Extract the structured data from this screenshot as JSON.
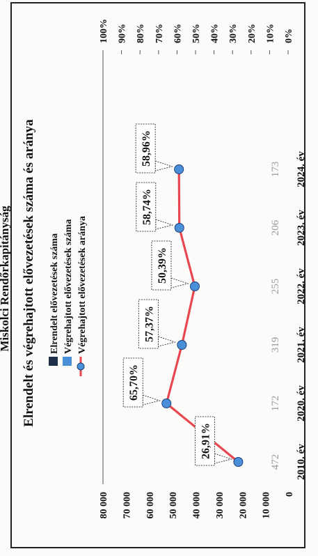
{
  "header_fragment": "Miskolci Rendőrkapitányság",
  "chart_data": {
    "type": "line",
    "title": "Elrendelt és végrehajtott elővezetések száma és aránya",
    "categories": [
      "2010. év",
      "2020. év",
      "2021. év",
      "2022. év",
      "2023. év",
      "2024. év"
    ],
    "legend": [
      {
        "name": "Elrendelt elővezetések száma",
        "color": "#1f2f4a",
        "marker": "square"
      },
      {
        "name": "Végrehajtott elővezetések száma",
        "color": "#4a90d9",
        "marker": "square"
      },
      {
        "name": "Végrehajtott elővezetések aránya",
        "color": "#e8474f",
        "marker": "line-dot"
      }
    ],
    "left_axis": {
      "ylim": [
        0,
        80000
      ],
      "ticks": [
        "0",
        "10 000",
        "20 000",
        "30 000",
        "40 000",
        "50 000",
        "60 000",
        "70 000",
        "80 000"
      ]
    },
    "right_axis": {
      "ylim": [
        0,
        100
      ],
      "ticks": [
        "0%",
        "10%",
        "20%",
        "30%",
        "40%",
        "50%",
        "60%",
        "70%",
        "80%",
        "90%",
        "100%"
      ]
    },
    "series": [
      {
        "name": "Végrehajtott elővezetések aránya",
        "axis": "right",
        "color": "#e8474f",
        "values": [
          26.91,
          65.7,
          57.37,
          50.39,
          58.74,
          58.96
        ],
        "data_labels": [
          "26,91%",
          "65,70%",
          "57,37%",
          "50,39%",
          "58,74%",
          "58,96%"
        ]
      }
    ],
    "category_text": [
      "472",
      "172",
      "319",
      "255",
      "206",
      "173"
    ]
  }
}
